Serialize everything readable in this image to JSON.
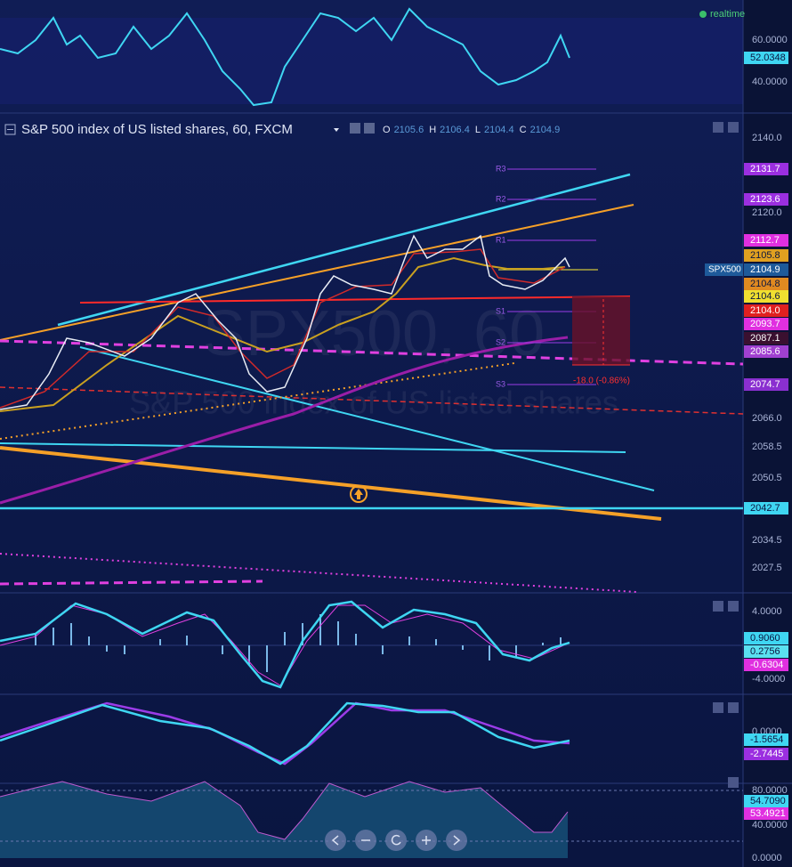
{
  "realtime": "realtime",
  "rsi_pane": {
    "ticks": [
      "60.0000",
      "40.0000"
    ],
    "last": "52.0348"
  },
  "main_pane": {
    "title": "S&P 500 index of US listed shares, 60, FXCM",
    "ohlc": [
      {
        "label": "O",
        "value": "2105.6"
      },
      {
        "label": "H",
        "value": "2106.4"
      },
      {
        "label": "L",
        "value": "2104.4"
      },
      {
        "label": "C",
        "value": "2104.9"
      }
    ],
    "ticks": [
      "2140.0",
      "2120.0",
      "2066.0",
      "2058.5",
      "2050.5",
      "2034.5",
      "2027.5"
    ],
    "badges": [
      "2131.7",
      "2123.6",
      "2112.7",
      "2105.8",
      "2104.9",
      "2104.8",
      "2104.6",
      "2104.0",
      "2093.7",
      "2087.1",
      "2085.6",
      "2074.7",
      "2042.7"
    ],
    "symbol": "SPX500",
    "pivots": [
      "R3",
      "R2",
      "R1",
      "S1",
      "S2",
      "S3"
    ],
    "change": "-18.0 (-0.86%)",
    "watermark": [
      "SPX500, 60",
      "S&P 500 index of US listed shares"
    ]
  },
  "macd_pane": {
    "ticks": [
      "4.0000",
      "-4.0000"
    ],
    "badges": [
      "0.9060",
      "0.2756",
      "-0.6304"
    ]
  },
  "osc_pane": {
    "ticks": [
      "0.0000"
    ],
    "badges": [
      "-1.5654",
      "-2.7445"
    ]
  },
  "stoch_pane": {
    "ticks": [
      "80.0000",
      "40.0000",
      "0.0000"
    ],
    "badges": [
      "54.7090",
      "53.4921"
    ]
  }
}
